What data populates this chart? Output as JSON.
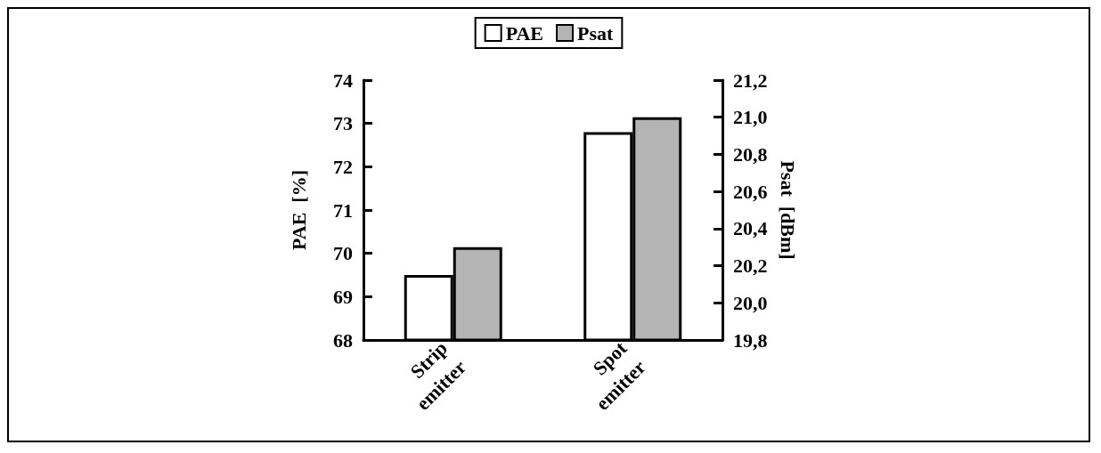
{
  "chart_data": {
    "type": "bar",
    "categories": [
      "Strip emitter",
      "Spot emitter"
    ],
    "series": [
      {
        "name": "PAE",
        "color": "#ffffff",
        "values": [
          69.5,
          72.8
        ]
      },
      {
        "name": "Psat",
        "color": "#b4b4b4",
        "values": [
          20.3,
          21.0
        ],
        "axis": "y2"
      }
    ],
    "ylabel": "PAE  [%]",
    "y2label": "Psat  [dBm]",
    "ylim": [
      68,
      74
    ],
    "yticks": [
      68,
      69,
      70,
      71,
      72,
      73,
      74
    ],
    "y2lim": [
      19.8,
      21.2
    ],
    "y2ticks": [
      {
        "value": 19.8,
        "label": "19,8"
      },
      {
        "value": 20.0,
        "label": "20,0"
      },
      {
        "value": 20.2,
        "label": "20,2"
      },
      {
        "value": 20.4,
        "label": "20,4"
      },
      {
        "value": 20.6,
        "label": "20,6"
      },
      {
        "value": 20.8,
        "label": "20,8"
      },
      {
        "value": 21.0,
        "label": "21,0"
      },
      {
        "value": 21.2,
        "label": "21,2"
      }
    ],
    "legend": "top",
    "grid": false
  }
}
